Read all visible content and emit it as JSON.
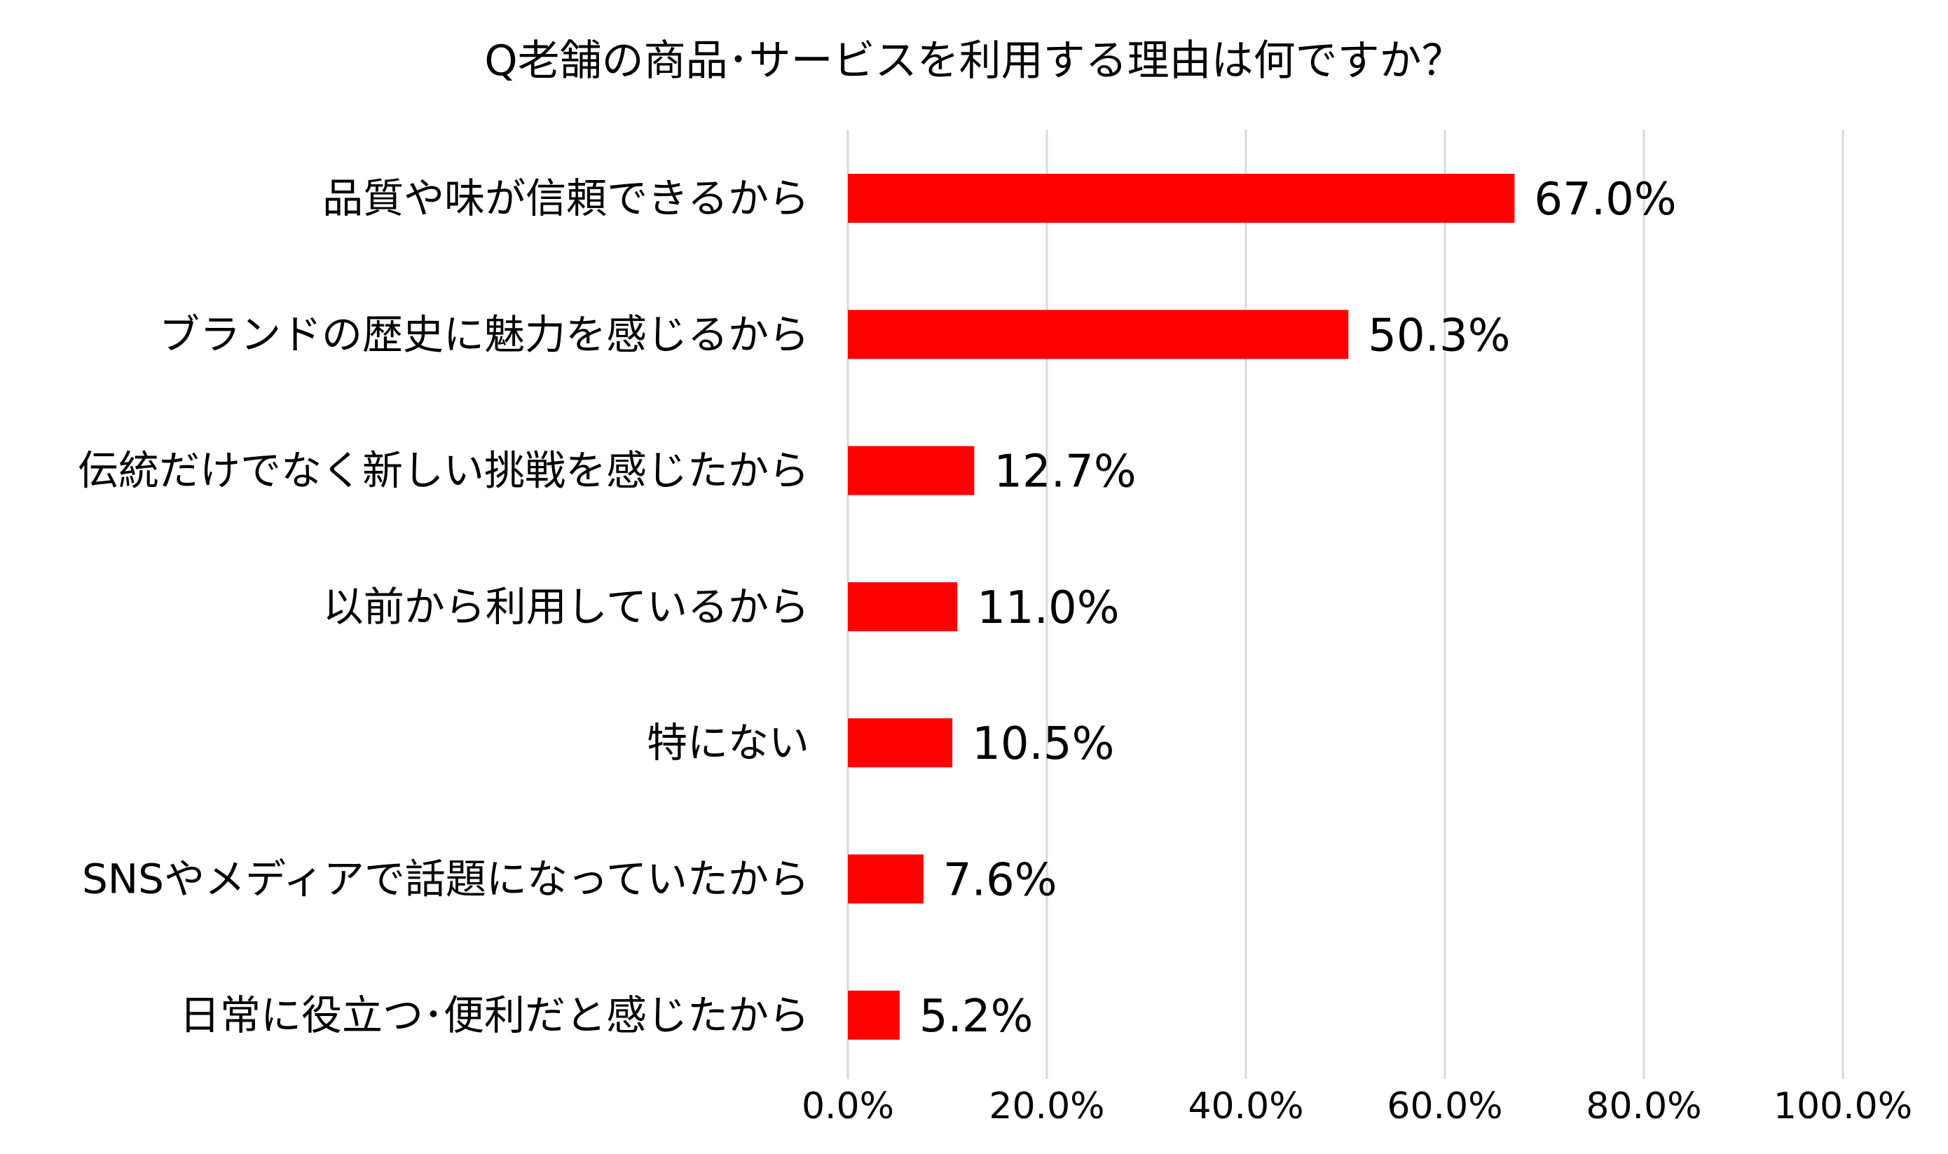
{
  "chart_data": {
    "type": "bar",
    "orientation": "horizontal",
    "title": "Q老舗の商品･サービスを利用する理由は何ですか？",
    "categories": [
      "品質や味が信頼できるから",
      "ブランドの歴史に魅力を感じるから",
      "伝統だけでなく新しい挑戦を感じたから",
      "以前から利用しているから",
      "特にない",
      "SNSやメディアで話題になっていたから",
      "日常に役立つ･便利だと感じたから"
    ],
    "values": [
      67.0,
      50.3,
      12.7,
      11.0,
      10.5,
      7.6,
      5.2
    ],
    "data_labels": [
      "67.0%",
      "50.3%",
      "12.7%",
      "11.0%",
      "10.5%",
      "7.6%",
      "5.2%"
    ],
    "x_ticks": [
      0,
      20,
      40,
      60,
      80,
      100
    ],
    "x_tick_labels": [
      "0.0%",
      "20.0%",
      "40.0%",
      "60.0%",
      "80.0%",
      "100.0%"
    ],
    "xlim": [
      0,
      100
    ],
    "xlabel": "",
    "ylabel": "",
    "grid": "vertical",
    "legend": "none",
    "bar_color": "#ff0000",
    "grid_color": "#d9d9d9"
  }
}
